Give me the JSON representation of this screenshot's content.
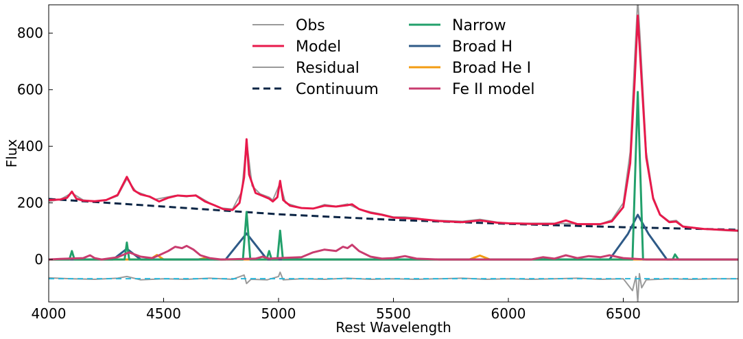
{
  "chart_data": {
    "type": "line",
    "xlabel": "Rest Wavelength",
    "ylabel": "Flux",
    "xlim": [
      4000,
      7000
    ],
    "ylim": [
      -150,
      900
    ],
    "xticks": [
      4000,
      4500,
      5000,
      5500,
      6000,
      6500
    ],
    "yticks": [
      0,
      200,
      400,
      600,
      800
    ],
    "legend_placement": "upper center, two columns",
    "series": [
      {
        "name": "Obs",
        "color": "#999999",
        "style": "solid",
        "points": [
          [
            4000,
            205
          ],
          [
            4050,
            212
          ],
          [
            4100,
            235
          ],
          [
            4150,
            210
          ],
          [
            4200,
            206
          ],
          [
            4250,
            210
          ],
          [
            4300,
            225
          ],
          [
            4340,
            285
          ],
          [
            4380,
            240
          ],
          [
            4420,
            228
          ],
          [
            4460,
            212
          ],
          [
            4500,
            218
          ],
          [
            4550,
            226
          ],
          [
            4600,
            222
          ],
          [
            4640,
            228
          ],
          [
            4700,
            200
          ],
          [
            4750,
            182
          ],
          [
            4800,
            178
          ],
          [
            4840,
            240
          ],
          [
            4861,
            420
          ],
          [
            4885,
            260
          ],
          [
            4920,
            232
          ],
          [
            4959,
            220
          ],
          [
            4975,
            210
          ],
          [
            5007,
            270
          ],
          [
            5030,
            200
          ],
          [
            5100,
            182
          ],
          [
            5150,
            180
          ],
          [
            5200,
            194
          ],
          [
            5250,
            188
          ],
          [
            5300,
            196
          ],
          [
            5350,
            178
          ],
          [
            5400,
            168
          ],
          [
            5450,
            160
          ],
          [
            5500,
            150
          ],
          [
            5550,
            150
          ],
          [
            5600,
            146
          ],
          [
            5650,
            140
          ],
          [
            5700,
            138
          ],
          [
            5800,
            135
          ],
          [
            5876,
            142
          ],
          [
            5950,
            132
          ],
          [
            6000,
            128
          ],
          [
            6100,
            128
          ],
          [
            6200,
            128
          ],
          [
            6300,
            126
          ],
          [
            6400,
            125
          ],
          [
            6450,
            140
          ],
          [
            6500,
            200
          ],
          [
            6530,
            380
          ],
          [
            6550,
            720
          ],
          [
            6563,
            920
          ],
          [
            6575,
            760
          ],
          [
            6600,
            380
          ],
          [
            6630,
            220
          ],
          [
            6660,
            160
          ],
          [
            6700,
            135
          ],
          [
            6730,
            138
          ],
          [
            6760,
            118
          ],
          [
            6850,
            108
          ],
          [
            6950,
            102
          ],
          [
            7000,
            100
          ]
        ]
      },
      {
        "name": "Model",
        "color": "#e8194b",
        "style": "solid",
        "points": [
          [
            4000,
            210
          ],
          [
            4050,
            212
          ],
          [
            4080,
            218
          ],
          [
            4101,
            240
          ],
          [
            4120,
            215
          ],
          [
            4150,
            208
          ],
          [
            4200,
            206
          ],
          [
            4250,
            210
          ],
          [
            4300,
            228
          ],
          [
            4340,
            292
          ],
          [
            4370,
            245
          ],
          [
            4400,
            230
          ],
          [
            4440,
            222
          ],
          [
            4480,
            205
          ],
          [
            4520,
            218
          ],
          [
            4560,
            226
          ],
          [
            4600,
            224
          ],
          [
            4640,
            226
          ],
          [
            4680,
            205
          ],
          [
            4720,
            192
          ],
          [
            4760,
            178
          ],
          [
            4800,
            175
          ],
          [
            4830,
            200
          ],
          [
            4850,
            290
          ],
          [
            4861,
            425
          ],
          [
            4872,
            300
          ],
          [
            4900,
            235
          ],
          [
            4930,
            225
          ],
          [
            4959,
            215
          ],
          [
            4975,
            205
          ],
          [
            4995,
            220
          ],
          [
            5007,
            278
          ],
          [
            5020,
            210
          ],
          [
            5050,
            190
          ],
          [
            5100,
            182
          ],
          [
            5150,
            180
          ],
          [
            5200,
            190
          ],
          [
            5250,
            187
          ],
          [
            5300,
            192
          ],
          [
            5320,
            195
          ],
          [
            5350,
            178
          ],
          [
            5400,
            165
          ],
          [
            5450,
            158
          ],
          [
            5500,
            148
          ],
          [
            5550,
            146
          ],
          [
            5600,
            144
          ],
          [
            5650,
            140
          ],
          [
            5700,
            136
          ],
          [
            5800,
            132
          ],
          [
            5876,
            138
          ],
          [
            5950,
            130
          ],
          [
            6000,
            128
          ],
          [
            6100,
            126
          ],
          [
            6200,
            126
          ],
          [
            6250,
            138
          ],
          [
            6300,
            125
          ],
          [
            6400,
            125
          ],
          [
            6450,
            135
          ],
          [
            6500,
            185
          ],
          [
            6530,
            340
          ],
          [
            6550,
            640
          ],
          [
            6563,
            862
          ],
          [
            6575,
            700
          ],
          [
            6600,
            360
          ],
          [
            6630,
            215
          ],
          [
            6660,
            158
          ],
          [
            6700,
            132
          ],
          [
            6730,
            134
          ],
          [
            6760,
            116
          ],
          [
            6850,
            108
          ],
          [
            6950,
            104
          ],
          [
            7000,
            102
          ]
        ]
      },
      {
        "name": "Residual",
        "color": "#999999",
        "style": "solid",
        "points": [
          [
            4000,
            -65
          ],
          [
            4100,
            -68
          ],
          [
            4200,
            -70
          ],
          [
            4300,
            -66
          ],
          [
            4340,
            -60
          ],
          [
            4400,
            -72
          ],
          [
            4500,
            -68
          ],
          [
            4600,
            -70
          ],
          [
            4700,
            -66
          ],
          [
            4800,
            -70
          ],
          [
            4850,
            -55
          ],
          [
            4861,
            -85
          ],
          [
            4880,
            -70
          ],
          [
            4950,
            -72
          ],
          [
            5000,
            -60
          ],
          [
            5007,
            -45
          ],
          [
            5020,
            -72
          ],
          [
            5100,
            -68
          ],
          [
            5200,
            -70
          ],
          [
            5300,
            -66
          ],
          [
            5400,
            -70
          ],
          [
            5500,
            -68
          ],
          [
            5600,
            -70
          ],
          [
            5700,
            -68
          ],
          [
            5800,
            -66
          ],
          [
            5900,
            -70
          ],
          [
            6000,
            -68
          ],
          [
            6100,
            -70
          ],
          [
            6200,
            -68
          ],
          [
            6300,
            -66
          ],
          [
            6400,
            -70
          ],
          [
            6500,
            -68
          ],
          [
            6540,
            -110
          ],
          [
            6555,
            -60
          ],
          [
            6563,
            -150
          ],
          [
            6570,
            -50
          ],
          [
            6580,
            -100
          ],
          [
            6600,
            -72
          ],
          [
            6700,
            -68
          ],
          [
            6800,
            -70
          ],
          [
            6900,
            -68
          ],
          [
            7000,
            -68
          ]
        ]
      },
      {
        "name": "Continuum",
        "color": "#0b2545",
        "style": "dashed",
        "points": [
          [
            4000,
            214
          ],
          [
            4500,
            187
          ],
          [
            5000,
            160
          ],
          [
            5500,
            140
          ],
          [
            6000,
            126
          ],
          [
            6500,
            114
          ],
          [
            7000,
            105
          ]
        ]
      },
      {
        "name": "Narrow",
        "color": "#22a06b",
        "style": "solid",
        "points": [
          [
            4000,
            0
          ],
          [
            4090,
            0
          ],
          [
            4101,
            30
          ],
          [
            4112,
            0
          ],
          [
            4330,
            0
          ],
          [
            4340,
            60
          ],
          [
            4350,
            0
          ],
          [
            4845,
            0
          ],
          [
            4861,
            168
          ],
          [
            4877,
            0
          ],
          [
            4948,
            0
          ],
          [
            4959,
            30
          ],
          [
            4970,
            0
          ],
          [
            4995,
            0
          ],
          [
            5007,
            102
          ],
          [
            5019,
            0
          ],
          [
            6540,
            0
          ],
          [
            6563,
            592
          ],
          [
            6586,
            0
          ],
          [
            6715,
            0
          ],
          [
            6725,
            18
          ],
          [
            6740,
            0
          ],
          [
            7000,
            0
          ]
        ]
      },
      {
        "name": "Broad H",
        "color": "#2e5a87",
        "style": "solid",
        "points": [
          [
            4000,
            0
          ],
          [
            4280,
            0
          ],
          [
            4340,
            38
          ],
          [
            4400,
            0
          ],
          [
            4770,
            0
          ],
          [
            4861,
            92
          ],
          [
            4950,
            0
          ],
          [
            6440,
            0
          ],
          [
            6520,
            90
          ],
          [
            6563,
            158
          ],
          [
            6610,
            90
          ],
          [
            6690,
            0
          ],
          [
            7000,
            0
          ]
        ]
      },
      {
        "name": "Broad He I",
        "color": "#f39c12",
        "style": "solid",
        "points": [
          [
            4000,
            0
          ],
          [
            4440,
            0
          ],
          [
            4471,
            16
          ],
          [
            4500,
            0
          ],
          [
            4650,
            0
          ],
          [
            4686,
            6
          ],
          [
            4720,
            0
          ],
          [
            5830,
            0
          ],
          [
            5876,
            14
          ],
          [
            5920,
            0
          ],
          [
            7000,
            0
          ]
        ]
      },
      {
        "name": "Fe II model",
        "color": "#c93c6f",
        "style": "solid",
        "points": [
          [
            4000,
            0
          ],
          [
            4050,
            2
          ],
          [
            4150,
            5
          ],
          [
            4180,
            15
          ],
          [
            4200,
            5
          ],
          [
            4230,
            0
          ],
          [
            4300,
            8
          ],
          [
            4350,
            25
          ],
          [
            4400,
            10
          ],
          [
            4450,
            5
          ],
          [
            4480,
            15
          ],
          [
            4520,
            30
          ],
          [
            4550,
            45
          ],
          [
            4580,
            40
          ],
          [
            4600,
            48
          ],
          [
            4630,
            35
          ],
          [
            4660,
            15
          ],
          [
            4700,
            5
          ],
          [
            4750,
            0
          ],
          [
            4900,
            3
          ],
          [
            4930,
            10
          ],
          [
            4960,
            3
          ],
          [
            5000,
            5
          ],
          [
            5100,
            8
          ],
          [
            5150,
            25
          ],
          [
            5200,
            35
          ],
          [
            5250,
            30
          ],
          [
            5280,
            45
          ],
          [
            5300,
            40
          ],
          [
            5320,
            52
          ],
          [
            5350,
            30
          ],
          [
            5400,
            10
          ],
          [
            5450,
            3
          ],
          [
            5500,
            5
          ],
          [
            5550,
            12
          ],
          [
            5600,
            3
          ],
          [
            5700,
            0
          ],
          [
            6100,
            0
          ],
          [
            6150,
            8
          ],
          [
            6200,
            3
          ],
          [
            6250,
            15
          ],
          [
            6300,
            5
          ],
          [
            6350,
            12
          ],
          [
            6400,
            8
          ],
          [
            6440,
            15
          ],
          [
            6500,
            5
          ],
          [
            6600,
            0
          ],
          [
            7000,
            0
          ]
        ]
      }
    ]
  }
}
